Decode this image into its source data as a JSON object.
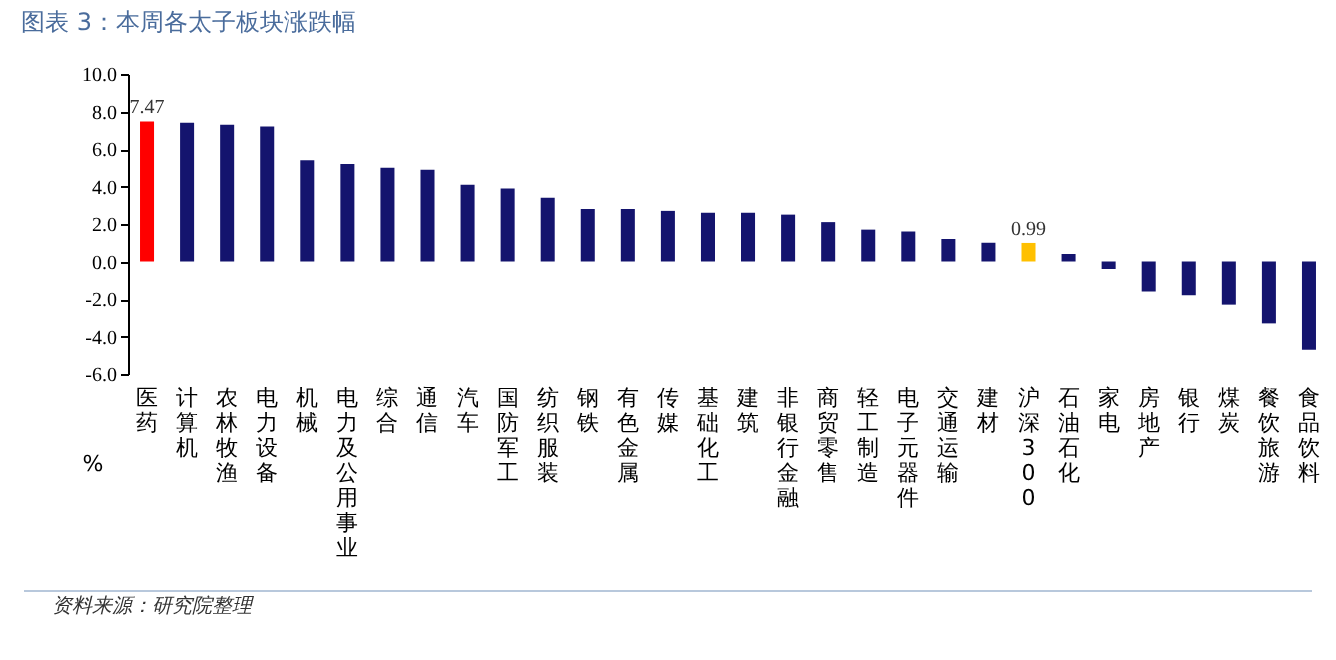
{
  "chart_data": {
    "type": "bar",
    "title": "图表 3：本周各太子板块涨跌幅",
    "ylabel": "%",
    "categories": [
      "医药",
      "计算机",
      "农林牧渔",
      "电力设备",
      "机械",
      "电力及公用事业",
      "综合",
      "通信",
      "汽车",
      "国防军工",
      "纺织服装",
      "钢铁",
      "有色金属",
      "传媒",
      "基础化工",
      "建筑",
      "非银行金融",
      "商贸零售",
      "轻工制造",
      "电子元器件",
      "交通运输",
      "建材",
      "沪深300",
      "石油石化",
      "家电",
      "房地产",
      "银行",
      "煤炭",
      "餐饮旅游",
      "食品饮料"
    ],
    "values": [
      7.47,
      7.4,
      7.3,
      7.2,
      5.4,
      5.2,
      5.0,
      4.9,
      4.1,
      3.9,
      3.4,
      2.8,
      2.8,
      2.7,
      2.6,
      2.6,
      2.5,
      2.1,
      1.7,
      1.6,
      1.2,
      1.0,
      0.99,
      0.4,
      -0.4,
      -1.6,
      -1.8,
      -2.3,
      -3.3,
      -4.7
    ],
    "colors": [
      "#ff0000",
      "#14146e",
      "#14146e",
      "#14146e",
      "#14146e",
      "#14146e",
      "#14146e",
      "#14146e",
      "#14146e",
      "#14146e",
      "#14146e",
      "#14146e",
      "#14146e",
      "#14146e",
      "#14146e",
      "#14146e",
      "#14146e",
      "#14146e",
      "#14146e",
      "#14146e",
      "#14146e",
      "#14146e",
      "#ffc000",
      "#14146e",
      "#14146e",
      "#14146e",
      "#14146e",
      "#14146e",
      "#14146e",
      "#14146e"
    ],
    "value_labels": [
      "7.47",
      null,
      null,
      null,
      null,
      null,
      null,
      null,
      null,
      null,
      null,
      null,
      null,
      null,
      null,
      null,
      null,
      null,
      null,
      null,
      null,
      null,
      "0.99",
      null,
      null,
      null,
      null,
      null,
      null,
      null
    ],
    "ylim": [
      -6,
      10
    ],
    "yticks": [
      {
        "value": -6,
        "label": "-6.0"
      },
      {
        "value": -4,
        "label": "-4.0"
      },
      {
        "value": -2,
        "label": "-2.0"
      },
      {
        "value": 0,
        "label": "0.0"
      },
      {
        "value": 2,
        "label": "2.0"
      },
      {
        "value": 4,
        "label": "4.0"
      },
      {
        "value": 6,
        "label": "6.0"
      },
      {
        "value": 8,
        "label": "8.0"
      },
      {
        "value": 10,
        "label": "10.0"
      }
    ],
    "grid": false,
    "legend": false,
    "annotations": [
      "资料来源：研究院整理"
    ]
  }
}
